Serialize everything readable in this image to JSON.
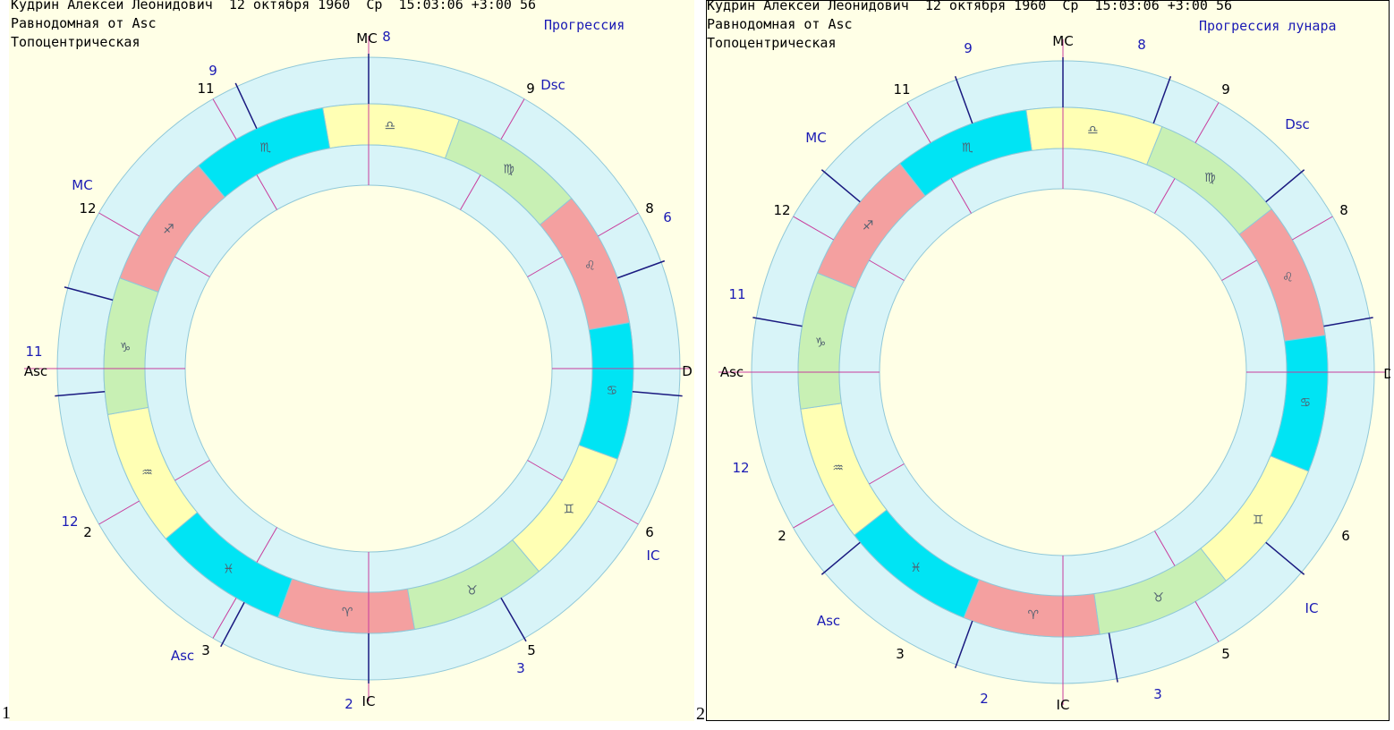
{
  "panels": [
    {
      "number": "1",
      "header": {
        "line1": "Кудрин Алексей Леонидович  12 октября 1960  Ср  15:03:06 +3:00 56",
        "line2": "Равнодомная от Asc",
        "line3": "Топоцентрическая",
        "mode": "Прогрессия"
      },
      "outer_labels": [
        {
          "text": "МС",
          "color": "#000"
        },
        {
          "text": "8",
          "color": "#1a1ab4"
        },
        {
          "text": "9",
          "color": "#000"
        },
        {
          "text": "Dsc",
          "color": "#1a1ab4"
        },
        {
          "text": "8",
          "color": "#000"
        },
        {
          "text": "6",
          "color": "#1a1ab4"
        },
        {
          "text": "D",
          "color": "#000"
        },
        {
          "text": "6",
          "color": "#000"
        },
        {
          "text": "IC",
          "color": "#1a1ab4"
        },
        {
          "text": "5",
          "color": "#000"
        },
        {
          "text": "3",
          "color": "#1a1ab4"
        },
        {
          "text": "IC",
          "color": "#000"
        },
        {
          "text": "2",
          "color": "#1a1ab4"
        },
        {
          "text": "Asc",
          "color": "#1a1ab4"
        },
        {
          "text": "3",
          "color": "#000"
        },
        {
          "text": "12",
          "color": "#1a1ab4"
        },
        {
          "text": "2",
          "color": "#000"
        },
        {
          "text": "11",
          "color": "#1a1ab4"
        },
        {
          "text": "Asc",
          "color": "#000"
        },
        {
          "text": "12",
          "color": "#000"
        },
        {
          "text": "МС",
          "color": "#1a1ab4"
        },
        {
          "text": "11",
          "color": "#000"
        },
        {
          "text": "9",
          "color": "#1a1ab4"
        }
      ]
    },
    {
      "number": "2",
      "header": {
        "line1": "Кудрин Алексей Леонидович  12 октября 1960  Ср  15:03:06 +3:00 56",
        "line2": "Равнодомная от Asc",
        "line3": "Топоцентрическая",
        "mode": "Прогрессия лунара"
      },
      "outer_labels": [
        {
          "text": "МС",
          "color": "#000"
        },
        {
          "text": "8",
          "color": "#1a1ab4"
        },
        {
          "text": "9",
          "color": "#1a1ab4"
        },
        {
          "text": "9",
          "color": "#000"
        },
        {
          "text": "Dsc",
          "color": "#1a1ab4"
        },
        {
          "text": "8",
          "color": "#000"
        },
        {
          "text": "D",
          "color": "#000"
        },
        {
          "text": "6",
          "color": "#000"
        },
        {
          "text": "IC",
          "color": "#1a1ab4"
        },
        {
          "text": "5",
          "color": "#000"
        },
        {
          "text": "3",
          "color": "#1a1ab4"
        },
        {
          "text": "IC",
          "color": "#000"
        },
        {
          "text": "2",
          "color": "#1a1ab4"
        },
        {
          "text": "3",
          "color": "#000"
        },
        {
          "text": "Asc",
          "color": "#1a1ab4"
        },
        {
          "text": "2",
          "color": "#000"
        },
        {
          "text": "12",
          "color": "#1a1ab4"
        },
        {
          "text": "Asc",
          "color": "#000"
        },
        {
          "text": "11",
          "color": "#1a1ab4"
        },
        {
          "text": "12",
          "color": "#000"
        },
        {
          "text": "МС",
          "color": "#1a1ab4"
        },
        {
          "text": "11",
          "color": "#000"
        }
      ]
    }
  ],
  "zodiac_signs": [
    "♎",
    "♍",
    "♌",
    "♋",
    "♊",
    "♉",
    "♈",
    "♓",
    "♒",
    "♑",
    "♐",
    "♏"
  ],
  "zodiac_colors": [
    "#ffffb4",
    "#c8f0b4",
    "#f4a0a0",
    "#00e4f4",
    "#ffffb4",
    "#c8f0b4",
    "#f4a0a0",
    "#00e4f4",
    "#ffffb4",
    "#c8f0b4",
    "#f4a0a0",
    "#00e4f4"
  ],
  "palette": {
    "ring": "#d8f4f8",
    "line": "#90c8d8",
    "cusp_major": "#1a1a80",
    "cusp_minor": "#c83c9c",
    "glyph": "#1a1ab4"
  }
}
